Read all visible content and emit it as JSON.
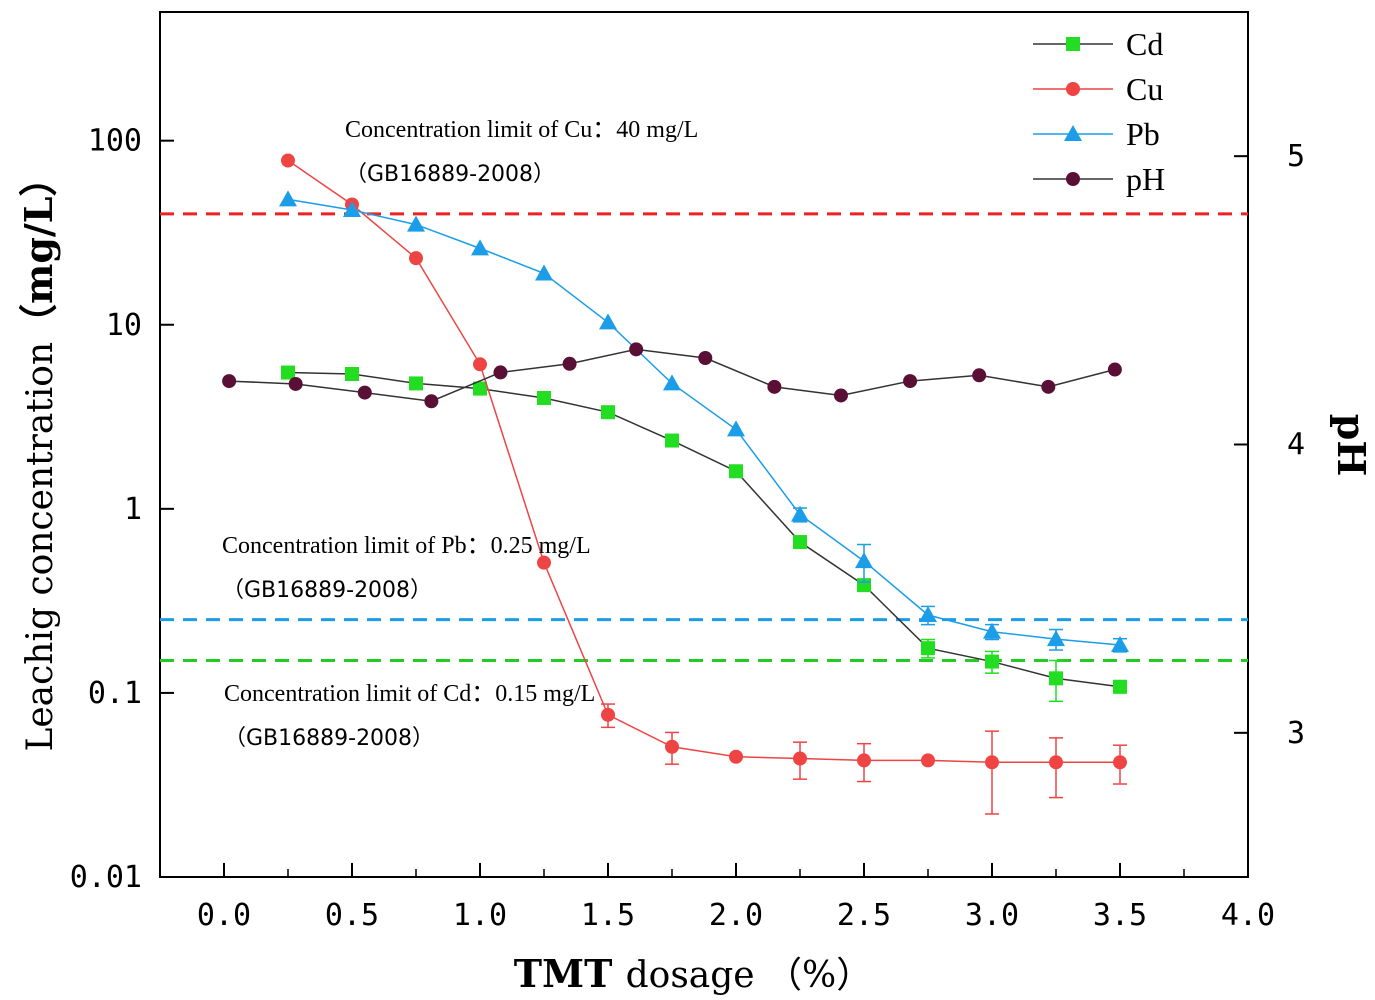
{
  "chart_data": {
    "type": "line",
    "x_axis": {
      "label_main": "TMT dosage",
      "label_unit": "（%）",
      "range": [
        -0.25,
        4.0
      ],
      "ticks": [
        0.0,
        0.5,
        1.0,
        1.5,
        2.0,
        2.5,
        3.0,
        3.5,
        4.0
      ],
      "tick_labels": [
        "0.0",
        "0.5",
        "1.0",
        "1.5",
        "2.0",
        "2.5",
        "3.0",
        "3.5",
        "4.0"
      ]
    },
    "y_axis_left": {
      "label_main": "Leachig concentration",
      "label_unit": "（mg/L）",
      "scale": "log",
      "range": [
        0.01,
        500
      ],
      "ticks": [
        0.01,
        0.1,
        1,
        10,
        100
      ],
      "tick_labels": [
        "0.01",
        "0.1",
        "1",
        "10",
        "100"
      ]
    },
    "y_axis_right": {
      "label": "pH",
      "range": [
        2.5,
        5.5
      ],
      "ticks": [
        3,
        4,
        5
      ],
      "tick_labels": [
        "3",
        "4",
        "5"
      ]
    },
    "series": [
      {
        "name": "Cd",
        "axis": "left",
        "color": "#22dd22",
        "line_color": "#333333",
        "marker": "square",
        "x": [
          0.25,
          0.5,
          0.75,
          1.0,
          1.25,
          1.5,
          1.75,
          2.0,
          2.25,
          2.5,
          2.75,
          3.0,
          3.25,
          3.5
        ],
        "values": [
          5.5,
          5.4,
          4.8,
          4.5,
          4.0,
          3.35,
          2.35,
          1.6,
          0.66,
          0.385,
          0.175,
          0.148,
          0.12,
          0.108
        ],
        "err": [
          0,
          0,
          0,
          0,
          0,
          0,
          0,
          0,
          0,
          0,
          0.02,
          0.02,
          0.03,
          0.008
        ]
      },
      {
        "name": "Cu",
        "axis": "left",
        "color": "#ee4444",
        "line_color": "#ee4444",
        "marker": "circle",
        "x": [
          0.25,
          0.5,
          0.75,
          1.0,
          1.25,
          1.5,
          1.75,
          2.0,
          2.25,
          2.5,
          2.75,
          3.0,
          3.25,
          3.5
        ],
        "values": [
          78,
          45,
          23,
          6.1,
          0.51,
          0.076,
          0.051,
          0.045,
          0.044,
          0.043,
          0.043,
          0.042,
          0.042,
          0.042
        ],
        "err": [
          0,
          0,
          0,
          0,
          0,
          0.011,
          0.01,
          0,
          0.01,
          0.01,
          0,
          0.02,
          0.015,
          0.01
        ]
      },
      {
        "name": "Pb",
        "axis": "left",
        "color": "#1b9de8",
        "line_color": "#1b9de8",
        "marker": "triangle",
        "x": [
          0.25,
          0.5,
          0.75,
          1.0,
          1.25,
          1.5,
          1.75,
          2.0,
          2.25,
          2.5,
          2.75,
          3.0,
          3.25,
          3.5
        ],
        "values": [
          48,
          42,
          35,
          26,
          19,
          10.3,
          4.8,
          2.7,
          0.93,
          0.52,
          0.265,
          0.215,
          0.196,
          0.182
        ],
        "err": [
          0,
          0,
          0,
          0,
          0,
          0,
          0,
          0,
          0.08,
          0.12,
          0.03,
          0.02,
          0.025,
          0.015
        ]
      },
      {
        "name": "pH",
        "axis": "right",
        "color": "#5a0f35",
        "line_color": "#333333",
        "marker": "circle",
        "x": [
          0.02,
          0.28,
          0.55,
          0.81,
          1.08,
          1.35,
          1.61,
          1.88,
          2.15,
          2.41,
          2.68,
          2.95,
          3.22,
          3.48
        ],
        "values": [
          4.22,
          4.21,
          4.18,
          4.15,
          4.25,
          4.28,
          4.33,
          4.3,
          4.2,
          4.17,
          4.22,
          4.24,
          4.2,
          4.26
        ],
        "err": [
          0,
          0,
          0,
          0,
          0,
          0,
          0,
          0,
          0,
          0,
          0,
          0,
          0,
          0
        ]
      }
    ],
    "reference_lines": [
      {
        "name": "Cu limit",
        "value": 40,
        "color": "#ee2222",
        "label": "Concentration limit of Cu：40 mg/L",
        "standard": "（GB16889-2008）"
      },
      {
        "name": "Pb limit",
        "value": 0.25,
        "color": "#1b9de8",
        "label": "Concentration limit of Pb：0.25 mg/L",
        "standard": "（GB16889-2008）"
      },
      {
        "name": "Cd limit",
        "value": 0.15,
        "color": "#22cc22",
        "label": "Concentration limit of Cd：0.15 mg/L",
        "standard": "（GB16889-2008）"
      }
    ],
    "legend": {
      "placement": "top-right",
      "entries": [
        "Cd",
        "Cu",
        "Pb",
        "pH"
      ]
    }
  }
}
